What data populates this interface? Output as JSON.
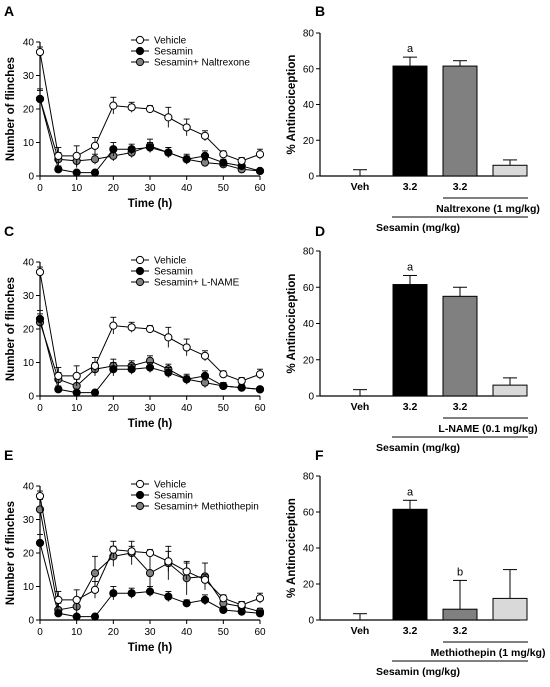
{
  "chart_data": [
    {
      "panel": "A",
      "type": "line",
      "xlabel": "Time (h)",
      "ylabel": "Number of flinches",
      "xlim": [
        0,
        60
      ],
      "ylim": [
        0,
        40
      ],
      "xticks": [
        0,
        10,
        20,
        30,
        40,
        50,
        60
      ],
      "yticks": [
        0,
        10,
        20,
        30,
        40
      ],
      "legend_position": "top-right",
      "x": [
        0,
        5,
        10,
        15,
        20,
        25,
        30,
        35,
        40,
        45,
        50,
        55,
        60
      ],
      "series": [
        {
          "name": "Vehicle",
          "marker": "open-circle",
          "fill": "#ffffff",
          "values": [
            37,
            6,
            6,
            9,
            21,
            20.5,
            20,
            17.5,
            14.5,
            12,
            6.5,
            4.5,
            6.5
          ],
          "errors": [
            1.5,
            2.5,
            3,
            2.5,
            2.5,
            1.5,
            1,
            3,
            2.5,
            1.5,
            1,
            1,
            1.5
          ]
        },
        {
          "name": "Sesamin",
          "marker": "filled-circle",
          "fill": "#000000",
          "values": [
            23,
            2,
            1,
            1,
            8,
            8,
            8.5,
            7,
            5,
            6,
            4,
            3,
            1.5
          ],
          "errors": [
            2.5,
            1,
            0.5,
            0.5,
            2,
            1.5,
            1.5,
            1.5,
            1,
            1.5,
            1,
            1,
            0.5
          ]
        },
        {
          "name": "Sesamin+ Naltrexone",
          "marker": "grey-circle",
          "fill": "#808080",
          "values": [
            23,
            5,
            4.5,
            5,
            6,
            7,
            9,
            7,
            5,
            4,
            3.5,
            2,
            1.5
          ],
          "errors": [
            3,
            2,
            2,
            1.5,
            1.5,
            1.5,
            2,
            1.5,
            1.5,
            1,
            1,
            1,
            0.5
          ]
        }
      ]
    },
    {
      "panel": "B",
      "type": "bar",
      "ylabel": "% Antinociception",
      "ylim": [
        0,
        80
      ],
      "yticks": [
        0,
        20,
        40,
        60,
        80
      ],
      "categories": [
        "Veh",
        "3.2",
        "3.2",
        ""
      ],
      "values": [
        0,
        61.5,
        61.5,
        6
      ],
      "errors": [
        3.5,
        5,
        3,
        3
      ],
      "colors": [
        "#ffffff",
        "#000000",
        "#808080",
        "#d9d9d9"
      ],
      "significance": [
        "",
        "a",
        "",
        ""
      ],
      "bracket_inner": "Naltrexone (1 mg/kg)",
      "bracket_outer": "Sesamin (mg/kg)"
    },
    {
      "panel": "C",
      "type": "line",
      "xlabel": "Time (h)",
      "ylabel": "Number of flinches",
      "xlim": [
        0,
        60
      ],
      "ylim": [
        0,
        40
      ],
      "xticks": [
        0,
        10,
        20,
        30,
        40,
        50,
        60
      ],
      "yticks": [
        0,
        10,
        20,
        30,
        40
      ],
      "legend_position": "top-right",
      "x": [
        0,
        5,
        10,
        15,
        20,
        25,
        30,
        35,
        40,
        45,
        50,
        55,
        60
      ],
      "series": [
        {
          "name": "Vehicle",
          "marker": "open-circle",
          "fill": "#ffffff",
          "values": [
            37,
            6,
            6,
            9,
            21,
            20.5,
            20,
            17.5,
            14.5,
            12,
            6.5,
            4.5,
            6.5
          ],
          "errors": [
            1.5,
            2.5,
            3,
            2.5,
            2.5,
            1.5,
            1,
            3,
            2.5,
            1.5,
            1,
            1,
            1.5
          ]
        },
        {
          "name": "Sesamin",
          "marker": "filled-circle",
          "fill": "#000000",
          "values": [
            23,
            2,
            1,
            1,
            8,
            8,
            8.5,
            7,
            5,
            6,
            3,
            2.5,
            2
          ],
          "errors": [
            2.5,
            1,
            0.5,
            0.5,
            2,
            1.5,
            1.5,
            1.5,
            1,
            1.5,
            1,
            1,
            0.5
          ]
        },
        {
          "name": "Sesamin+ L-NAME",
          "marker": "grey-circle",
          "fill": "#808080",
          "values": [
            22,
            5,
            3,
            8,
            9,
            9,
            10.5,
            8,
            5,
            4,
            3,
            2.5,
            2
          ],
          "errors": [
            2.5,
            2,
            2,
            2,
            2,
            1.5,
            1.5,
            1.5,
            1.5,
            1.5,
            1,
            1,
            0.5
          ]
        }
      ]
    },
    {
      "panel": "D",
      "type": "bar",
      "ylabel": "% Antinociception",
      "ylim": [
        0,
        80
      ],
      "yticks": [
        0,
        20,
        40,
        60,
        80
      ],
      "categories": [
        "Veh",
        "3.2",
        "3.2",
        ""
      ],
      "values": [
        0,
        61.5,
        55,
        6
      ],
      "errors": [
        3.5,
        5,
        5,
        4
      ],
      "colors": [
        "#ffffff",
        "#000000",
        "#808080",
        "#d9d9d9"
      ],
      "significance": [
        "",
        "a",
        "",
        ""
      ],
      "bracket_inner": "L-NAME (0.1 mg/kg)",
      "bracket_outer": "Sesamin (mg/kg)"
    },
    {
      "panel": "E",
      "type": "line",
      "xlabel": "Time (h)",
      "ylabel": "Number of flinches",
      "xlim": [
        0,
        60
      ],
      "ylim": [
        0,
        40
      ],
      "xticks": [
        0,
        10,
        20,
        30,
        40,
        50,
        60
      ],
      "yticks": [
        0,
        10,
        20,
        30,
        40
      ],
      "legend_position": "top-right",
      "x": [
        0,
        5,
        10,
        15,
        20,
        25,
        30,
        35,
        40,
        45,
        50,
        55,
        60
      ],
      "series": [
        {
          "name": "Vehicle",
          "marker": "open-circle",
          "fill": "#ffffff",
          "values": [
            37,
            6,
            6,
            9,
            21,
            20.5,
            20,
            17.5,
            14.5,
            12,
            6.5,
            4.5,
            6.5
          ],
          "errors": [
            1.5,
            2.5,
            3,
            2.5,
            2.5,
            1.5,
            1,
            3,
            2.5,
            1.5,
            1,
            1,
            1.5
          ]
        },
        {
          "name": "Sesamin",
          "marker": "filled-circle",
          "fill": "#000000",
          "values": [
            23,
            2,
            1,
            1,
            8,
            8,
            8.5,
            7,
            5,
            6,
            3,
            2.5,
            2
          ],
          "errors": [
            2.5,
            1,
            0.5,
            0.5,
            2,
            1.5,
            1.5,
            1.5,
            1,
            1.5,
            1,
            1,
            0.5
          ]
        },
        {
          "name": "Sesamin+ Methiothepin",
          "marker": "grey-circle",
          "fill": "#808080",
          "values": [
            33,
            3,
            4,
            14,
            19,
            20,
            14,
            17,
            12.5,
            13,
            5,
            4,
            2.5
          ],
          "errors": [
            3,
            2,
            2.5,
            5,
            3,
            3.5,
            6,
            5,
            5,
            4,
            2,
            1.5,
            1
          ]
        }
      ]
    },
    {
      "panel": "F",
      "type": "bar",
      "ylabel": "% Antinociception",
      "ylim": [
        0,
        80
      ],
      "yticks": [
        0,
        20,
        40,
        60,
        80
      ],
      "categories": [
        "Veh",
        "3.2",
        "3.2",
        ""
      ],
      "values": [
        0,
        61.5,
        6,
        12
      ],
      "errors": [
        3.5,
        5,
        16,
        16
      ],
      "colors": [
        "#ffffff",
        "#000000",
        "#808080",
        "#d9d9d9"
      ],
      "significance": [
        "",
        "a",
        "b",
        ""
      ],
      "bracket_inner": "Methiothepin (1 mg/kg)",
      "bracket_outer": "Sesamin (mg/kg)"
    }
  ]
}
